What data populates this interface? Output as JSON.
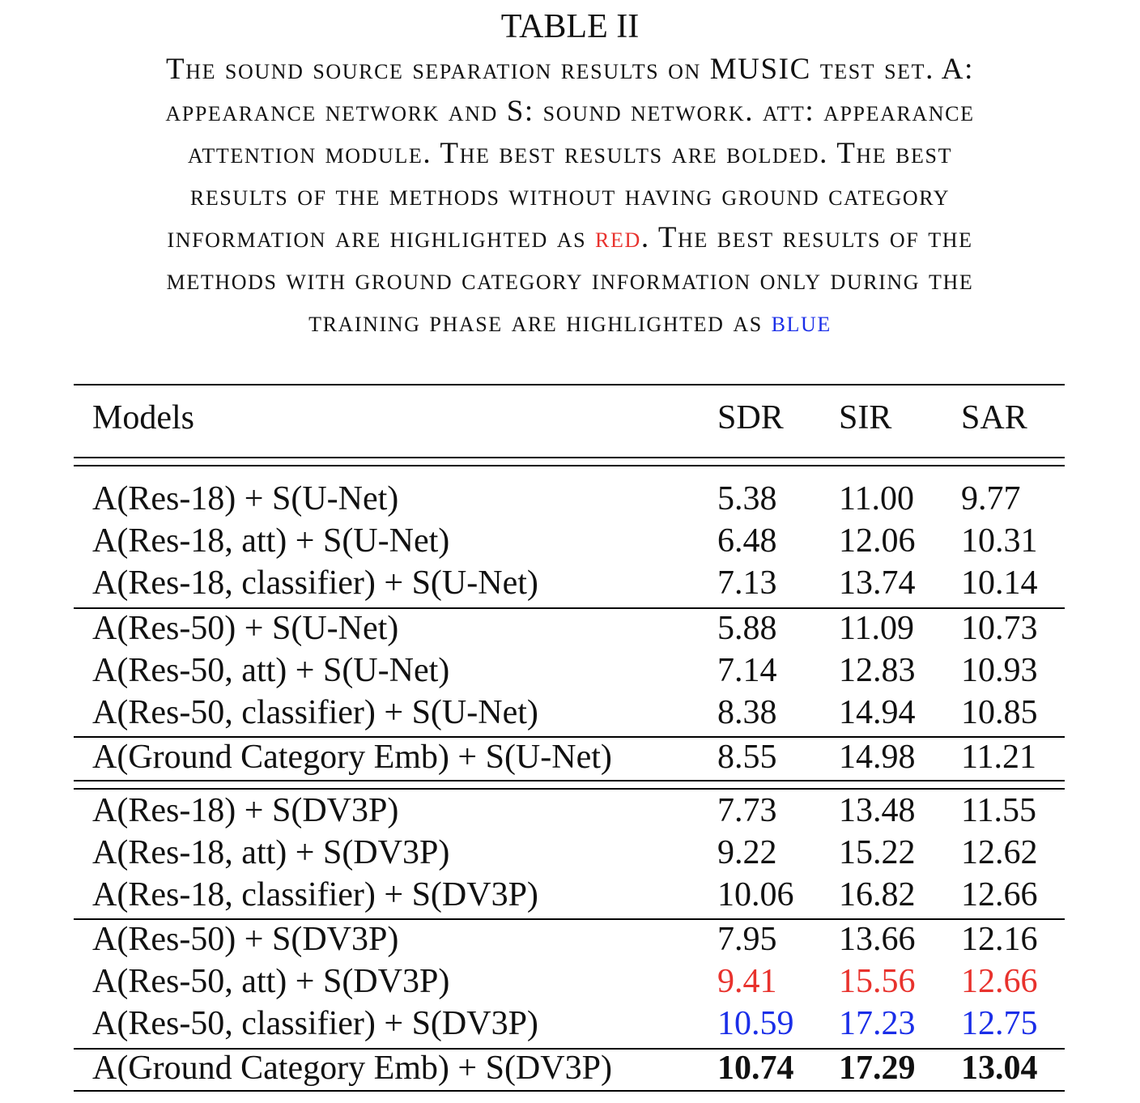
{
  "table_label": "TABLE II",
  "caption": {
    "lines": [
      [
        "The sound source separation results on MUSIC test set. A:"
      ],
      [
        "appearance network and S: sound network. att: appearance"
      ],
      [
        "attention module. The best results are bolded. The best"
      ],
      [
        "results of the methods without having ground category"
      ],
      [
        "information are highlighted as ",
        "red",
        ". The best results of the"
      ],
      [
        "methods with ground category information only during the"
      ],
      [
        "training phase are highlighted as ",
        "blue"
      ]
    ]
  },
  "header": {
    "models": "Models",
    "sdr": "SDR",
    "sir": "SIR",
    "sar": "SAR"
  },
  "rows": [
    {
      "model": "A(Res-18) + S(U-Net)",
      "sdr": "5.38",
      "sir": "11.00",
      "sar": "9.77"
    },
    {
      "model": "A(Res-18, att) + S(U-Net)",
      "sdr": "6.48",
      "sir": "12.06",
      "sar": "10.31"
    },
    {
      "model": "A(Res-18, classifier) + S(U-Net)",
      "sdr": "7.13",
      "sir": "13.74",
      "sar": "10.14"
    },
    {
      "model": "A(Res-50) + S(U-Net)",
      "sdr": "5.88",
      "sir": "11.09",
      "sar": "10.73"
    },
    {
      "model": "A(Res-50, att) + S(U-Net)",
      "sdr": "7.14",
      "sir": "12.83",
      "sar": "10.93"
    },
    {
      "model": "A(Res-50, classifier) + S(U-Net)",
      "sdr": "8.38",
      "sir": "14.94",
      "sar": "10.85"
    },
    {
      "model": "A(Ground Category Emb) + S(U-Net)",
      "sdr": "8.55",
      "sir": "14.98",
      "sar": "11.21"
    },
    {
      "model": "A(Res-18) + S(DV3P)",
      "sdr": "7.73",
      "sir": "13.48",
      "sar": "11.55"
    },
    {
      "model": "A(Res-18, att) + S(DV3P)",
      "sdr": "9.22",
      "sir": "15.22",
      "sar": "12.62"
    },
    {
      "model": "A(Res-18, classifier) + S(DV3P)",
      "sdr": "10.06",
      "sir": "16.82",
      "sar": "12.66"
    },
    {
      "model": "A(Res-50) + S(DV3P)",
      "sdr": "7.95",
      "sir": "13.66",
      "sar": "12.16"
    },
    {
      "model": "A(Res-50, att) + S(DV3P)",
      "sdr": "9.41",
      "sir": "15.56",
      "sar": "12.66"
    },
    {
      "model": "A(Res-50, classifier) + S(DV3P)",
      "sdr": "10.59",
      "sir": "17.23",
      "sar": "12.75"
    },
    {
      "model": "A(Ground Category Emb) + S(DV3P)",
      "sdr": "10.74",
      "sir": "17.29",
      "sar": "13.04"
    }
  ],
  "colors": {
    "red": "#e8322d",
    "blue": "#1a2ee8"
  }
}
